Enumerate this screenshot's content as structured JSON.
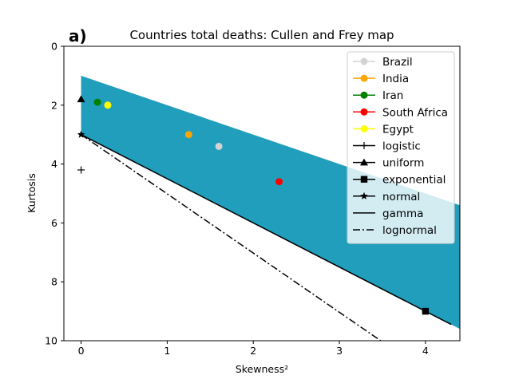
{
  "chart_data": {
    "type": "scatter",
    "panel_label": "a)",
    "title": "Countries total deaths: Cullen and Frey map",
    "xlabel": "Skewness²",
    "ylabel": "Kurtosis",
    "xlim": [
      -0.2,
      4.4
    ],
    "ylim": [
      10,
      0
    ],
    "y_inverted": true,
    "x_ticks": [
      0,
      1,
      2,
      3,
      4
    ],
    "y_ticks": [
      0,
      2,
      4,
      6,
      8,
      10
    ],
    "grid": false,
    "legend_position": "upper right",
    "beta_region": {
      "color": "#219ebc",
      "upper_boundary": [
        [
          0,
          1
        ],
        [
          4.4,
          5.4
        ]
      ],
      "lower_boundary": [
        [
          0,
          3
        ],
        [
          4.4,
          9.6
        ]
      ],
      "lower_right_boundary": [
        [
          4.4,
          9.6
        ],
        [
          4.4,
          5.4
        ]
      ]
    },
    "countries": [
      {
        "name": "Brazil",
        "x": 1.6,
        "y": 3.4,
        "color": "#d3d3d3"
      },
      {
        "name": "India",
        "x": 1.25,
        "y": 3.0,
        "color": "#ffa500"
      },
      {
        "name": "Iran",
        "x": 0.19,
        "y": 1.9,
        "color": "#008000"
      },
      {
        "name": "South Africa",
        "x": 2.3,
        "y": 4.6,
        "color": "#ff0000"
      },
      {
        "name": "Egypt",
        "x": 0.31,
        "y": 2.0,
        "color": "#ffff00"
      }
    ],
    "theoretical": [
      {
        "name": "logistic",
        "marker": "plus",
        "x": 0,
        "y": 4.2
      },
      {
        "name": "uniform",
        "marker": "triangle",
        "x": 0,
        "y": 1.8
      },
      {
        "name": "exponential",
        "marker": "square",
        "x": 4,
        "y": 9
      },
      {
        "name": "normal",
        "marker": "star",
        "x": 0,
        "y": 3
      }
    ],
    "lines": [
      {
        "name": "gamma",
        "style": "solid",
        "points": [
          [
            0,
            3
          ],
          [
            4.3,
            9.45
          ]
        ]
      },
      {
        "name": "lognormal",
        "style": "dashdot",
        "points": [
          [
            0,
            3
          ],
          [
            3.48,
            10
          ]
        ]
      }
    ],
    "legend": [
      "Brazil",
      "India",
      "Iran",
      "South Africa",
      "Egypt",
      "logistic",
      "uniform",
      "exponential",
      "normal",
      "gamma",
      "lognormal"
    ]
  }
}
